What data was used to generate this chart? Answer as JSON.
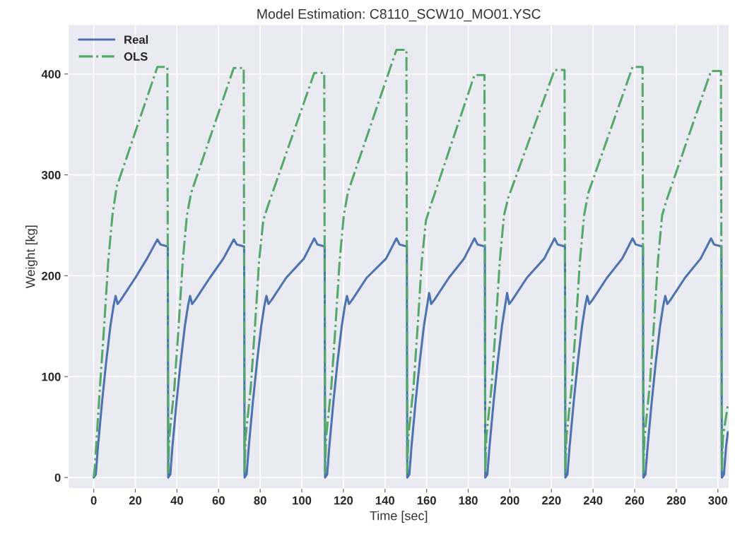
{
  "chart_data": {
    "type": "line",
    "title": "Model Estimation: C8110_SCW10_MO01.YSC",
    "xlabel": "Time [sec]",
    "ylabel": "Weight [kg]",
    "xlim": [
      -12.2,
      305.4
    ],
    "ylim": [
      -11,
      449
    ],
    "xticks": [
      0,
      20,
      40,
      60,
      80,
      100,
      120,
      140,
      160,
      180,
      200,
      220,
      240,
      260,
      280,
      300
    ],
    "yticks": [
      0,
      100,
      200,
      300,
      400
    ],
    "grid": true,
    "legend": "top left",
    "series": [
      {
        "name": "Real",
        "color": "#4c72b0",
        "line_style": "solid",
        "x": [
          0,
          1,
          2,
          4,
          6,
          8,
          9.5,
          10.5,
          11.5,
          13,
          20,
          25.6,
          30.6,
          32.1,
          35.6,
          35.8,
          36.8,
          37.8,
          39.8,
          41.8,
          43.8,
          45.3,
          46.3,
          47.3,
          48.8,
          55.8,
          62.3,
          67.3,
          68.8,
          72.3,
          72.5,
          73.5,
          74.5,
          76.5,
          78.5,
          80.5,
          82,
          83,
          84,
          85.5,
          92.5,
          101,
          106,
          107.5,
          111,
          111.2,
          112.2,
          113.2,
          115.2,
          117.2,
          119.2,
          120.7,
          121.7,
          122.7,
          124.2,
          131.2,
          140.5,
          145.5,
          147,
          150.5,
          150.7,
          151.7,
          152.7,
          154.7,
          156.7,
          158.7,
          160.2,
          161.2,
          162.2,
          163.7,
          170.7,
          178,
          183,
          184.5,
          188,
          188.2,
          189.2,
          190.2,
          192.2,
          194.2,
          196.2,
          197.7,
          198.7,
          199.7,
          201.2,
          208.2,
          216.5,
          221.5,
          223,
          226.5,
          226.7,
          227.7,
          228.7,
          230.7,
          232.7,
          234.7,
          236.2,
          237.2,
          238.2,
          239.7,
          246.7,
          254,
          259,
          260.5,
          264,
          264.2,
          265.2,
          266.2,
          268.2,
          270.2,
          272.2,
          273.7,
          274.7,
          275.7,
          277.2,
          284.2,
          291.7,
          296.7,
          298.2,
          301.7,
          301.9,
          302.9,
          303.9,
          304.8
        ],
        "values": [
          0,
          3,
          30,
          75,
          115,
          150,
          170,
          180,
          172,
          176,
          198,
          217,
          236,
          231,
          229,
          0,
          3,
          30,
          75,
          115,
          150,
          170,
          180,
          172,
          176,
          198,
          217,
          236,
          231,
          229,
          0,
          3,
          30,
          75,
          115,
          150,
          170,
          180,
          172,
          176,
          198,
          217,
          237,
          231,
          229,
          0,
          3,
          30,
          75,
          115,
          150,
          170,
          180,
          172,
          176,
          198,
          217,
          237,
          231,
          229,
          0,
          3,
          30,
          75,
          115,
          150,
          170,
          183,
          172,
          176,
          198,
          217,
          237,
          231,
          229,
          0,
          3,
          30,
          75,
          115,
          150,
          170,
          183,
          172,
          176,
          198,
          217,
          237,
          231,
          229,
          0,
          3,
          30,
          75,
          115,
          150,
          170,
          180,
          172,
          176,
          198,
          217,
          237,
          231,
          229,
          0,
          3,
          30,
          75,
          115,
          150,
          170,
          180,
          172,
          176,
          198,
          217,
          237,
          231,
          229,
          0,
          3,
          30,
          45
        ]
      },
      {
        "name": "OLS",
        "color": "#55a868",
        "line_style": "dashdot",
        "x": [
          0,
          0.5,
          3,
          5,
          7,
          9,
          11,
          30.6,
          35.4,
          35.8,
          36.3,
          38.8,
          40.8,
          42.8,
          44.8,
          46.8,
          67.3,
          72.1,
          72.5,
          73,
          75.5,
          77.5,
          79.5,
          81.5,
          83.5,
          106,
          110.8,
          111.2,
          111.7,
          114.2,
          116.2,
          118.2,
          120.2,
          122.2,
          145.5,
          150.3,
          150.7,
          151.2,
          153.7,
          155.7,
          157.7,
          159.7,
          161.7,
          183,
          187.8,
          188.2,
          188.7,
          191.2,
          193.2,
          195.2,
          197.2,
          199.2,
          221.5,
          226.3,
          226.7,
          227.2,
          229.7,
          231.7,
          233.7,
          235.7,
          237.7,
          259,
          263.8,
          264.2,
          264.7,
          267.2,
          269.2,
          271.2,
          273.2,
          275.2,
          296.7,
          301.5,
          301.9,
          302.4,
          304.8
        ],
        "values": [
          0,
          10,
          90,
          150,
          215,
          260,
          288,
          407,
          407,
          5,
          40,
          90,
          150,
          215,
          260,
          282,
          406,
          406,
          5,
          40,
          90,
          150,
          215,
          255,
          268,
          401,
          401,
          5,
          40,
          90,
          150,
          215,
          260,
          283,
          424,
          424,
          5,
          40,
          90,
          150,
          215,
          255,
          268,
          399,
          399,
          5,
          40,
          90,
          150,
          215,
          260,
          277,
          404,
          404,
          5,
          40,
          90,
          150,
          215,
          260,
          282,
          407,
          407,
          5,
          40,
          90,
          150,
          215,
          260,
          274,
          403,
          403,
          5,
          40,
          72
        ]
      }
    ]
  }
}
